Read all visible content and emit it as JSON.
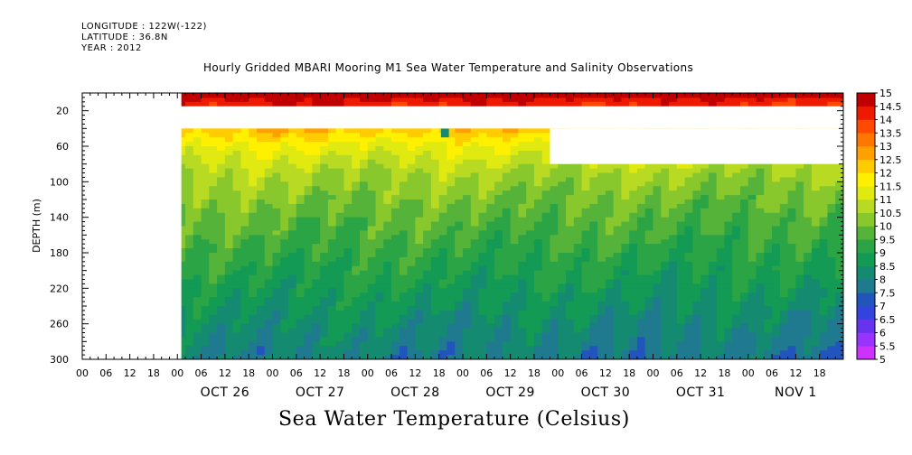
{
  "header": {
    "longitude": "LONGITUDE : 122W(-122)",
    "latitude": "LATITUDE : 36.8N",
    "year": "YEAR : 2012"
  },
  "chart_data": {
    "type": "heatmap",
    "title": "Hourly Gridded MBARI Mooring M1 Sea Water Temperature and Salinity Observations",
    "xlabel": "Sea Water Temperature (Celsius)",
    "ylabel": "DEPTH (m)",
    "y_axis": {
      "range": [
        300,
        0
      ],
      "ticks": [
        20,
        60,
        100,
        140,
        180,
        220,
        260,
        300
      ],
      "inverted": true
    },
    "x_axis": {
      "hour_tick_labels": [
        "00",
        "06",
        "12",
        "18",
        "00",
        "06",
        "12",
        "18",
        "00",
        "06",
        "12",
        "18",
        "00",
        "06",
        "12",
        "18",
        "00",
        "06",
        "12",
        "18",
        "00",
        "06",
        "12",
        "18",
        "00",
        "06",
        "12",
        "18",
        "00",
        "06",
        "12",
        "18"
      ],
      "day_labels": [
        "OCT 26",
        "OCT 27",
        "OCT 28",
        "OCT 29",
        "OCT 30",
        "OCT 31",
        "NOV  1"
      ],
      "start": "2012-10-25 00:00",
      "end": "2012-11-01 23:00",
      "data_start": "2012-10-26 00:00"
    },
    "colorbar": {
      "levels": [
        5,
        5.5,
        6,
        6.5,
        7,
        7.5,
        8,
        8.5,
        9,
        9.5,
        10,
        10.5,
        11,
        11.5,
        12,
        12.5,
        13,
        13.5,
        14,
        14.5,
        15
      ],
      "colors": [
        "#cc33ff",
        "#9933ff",
        "#6633ee",
        "#3344dd",
        "#2255bb",
        "#1f7a90",
        "#148a70",
        "#139a55",
        "#2aa445",
        "#55b33a",
        "#88c82d",
        "#b8da22",
        "#e0ea10",
        "#fff000",
        "#ffcc00",
        "#ffa000",
        "#ff7700",
        "#ff4a00",
        "#ee1a00",
        "#c00000"
      ]
    },
    "depth_profile_oct26": [
      {
        "depth": 10,
        "temp": 14.6
      },
      {
        "depth": 40,
        "temp": 12.5
      },
      {
        "depth": 60,
        "temp": 11.5
      },
      {
        "depth": 90,
        "temp": 10.7
      },
      {
        "depth": 120,
        "temp": 10.2
      },
      {
        "depth": 150,
        "temp": 9.8
      },
      {
        "depth": 180,
        "temp": 9.4
      },
      {
        "depth": 220,
        "temp": 8.9
      },
      {
        "depth": 260,
        "temp": 8.4
      },
      {
        "depth": 300,
        "temp": 8.0
      }
    ],
    "data_gaps": [
      {
        "depth_range": [
          15,
          40
        ],
        "time_range": [
          "2012-10-25 00:00",
          "2012-11-01 23:00"
        ]
      },
      {
        "depth_range": [
          40,
          80
        ],
        "time_range": [
          "2012-10-29 22:00",
          "2012-11-01 23:00"
        ]
      },
      {
        "depth_range": [
          0,
          300
        ],
        "time_range": [
          "2012-10-25 00:00",
          "2012-10-26 00:00"
        ]
      }
    ],
    "annotations": [
      {
        "x": "2012-10-28 19:00",
        "depth": 45,
        "temp": 8.0
      }
    ]
  }
}
